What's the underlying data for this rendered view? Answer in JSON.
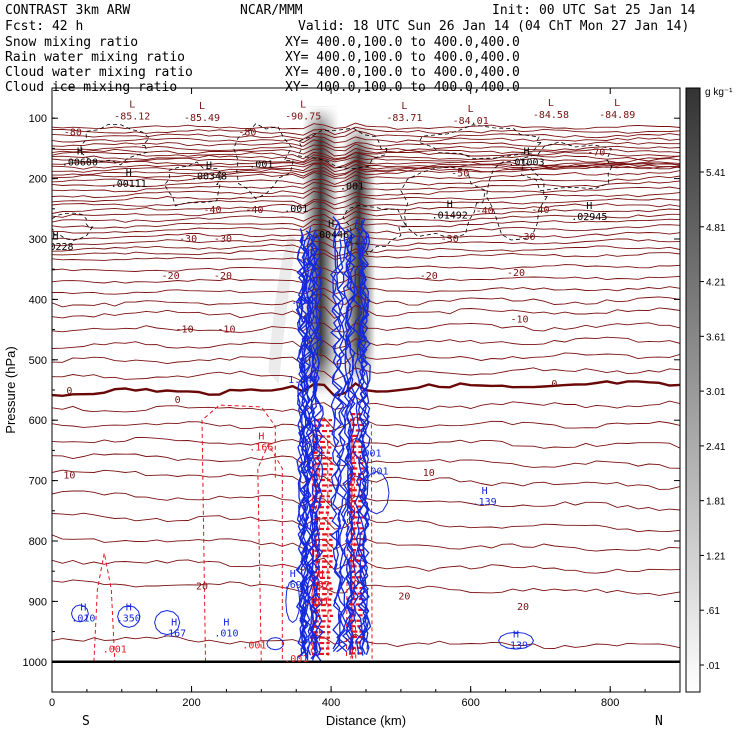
{
  "header": {
    "model": "CONTRAST  3km ARW",
    "center": "NCAR/MMM",
    "init": "Init: 00 UTC Sat 25 Jan 14",
    "fcst": "Fcst:   42 h",
    "valid": "Valid: 18 UTC Sun 26 Jan 14 (04 ChT Mon 27 Jan 14)"
  },
  "colors": {
    "snow": "#000000",
    "rain": "#e8141e",
    "cloud_water": "#1428dc",
    "cloud_ice": "#000000",
    "temperature": "#7a1010",
    "zero_line": "#6a0808"
  },
  "legend": [
    {
      "name": "Snow mixing ratio",
      "xy": "XY= 400.0,100.0 to 400.0,400.0",
      "color": "#000000"
    },
    {
      "name": "Rain water mixing ratio",
      "xy": "XY= 400.0,100.0 to 400.0,400.0",
      "color": "#e8141e"
    },
    {
      "name": "Cloud water mixing ratio",
      "xy": "XY= 400.0,100.0 to 400.0,400.0",
      "color": "#1428dc"
    },
    {
      "name": "Cloud ice mixing ratio",
      "xy": "XY= 400.0,100.0 to 400.0,400.0",
      "color": "#000000"
    }
  ],
  "chart_data": {
    "type": "heatmap",
    "xlabel": "Distance (km)",
    "ylabel": "Pressure (hPa)",
    "xlim": [
      0,
      900
    ],
    "ylim": [
      1050,
      50
    ],
    "x_ticks": [
      0,
      200,
      400,
      600,
      800
    ],
    "y_ticks": [
      100,
      200,
      300,
      400,
      500,
      600,
      700,
      800,
      900,
      1000
    ],
    "x_end_labels": {
      "left": "S",
      "right": "N"
    },
    "colorbar": {
      "units": "g kg⁻¹",
      "ticks": [
        ".01",
        ".61",
        "1.21",
        "1.81",
        "2.41",
        "3.01",
        "3.61",
        "4.21",
        "4.81",
        "5.41"
      ]
    },
    "temperature_contours": [
      {
        "value": -80,
        "p_left": 115,
        "p_right": 115
      },
      {
        "value": -70,
        "p_left": 150,
        "p_right": 150
      },
      {
        "value": -60,
        "p_left": 175,
        "p_right": 175
      },
      {
        "value": -50,
        "p_left": 205,
        "p_right": 180
      },
      {
        "value": -40,
        "p_left": 245,
        "p_right": 225
      },
      {
        "value": -30,
        "p_left": 290,
        "p_right": 268
      },
      {
        "value": -20,
        "p_left": 335,
        "p_right": 325
      },
      {
        "value": -10,
        "p_left": 425,
        "p_right": 420
      },
      {
        "value": 0,
        "p_left": 555,
        "p_right": 540
      },
      {
        "value": 10,
        "p_left": 685,
        "p_right": 710
      },
      {
        "value": 20,
        "p_left": 870,
        "p_right": 885
      }
    ],
    "temperature_labels": [
      {
        "text": "-80",
        "x": 30,
        "p": 122
      },
      {
        "text": "-80",
        "x": 280,
        "p": 122
      },
      {
        "text": "-70",
        "x": 780,
        "p": 155
      },
      {
        "text": "-50",
        "x": 585,
        "p": 190
      },
      {
        "text": "-40",
        "x": 230,
        "p": 250
      },
      {
        "text": "-40",
        "x": 290,
        "p": 250
      },
      {
        "text": "-40",
        "x": 620,
        "p": 252
      },
      {
        "text": "-40",
        "x": 700,
        "p": 250
      },
      {
        "text": "-30",
        "x": 195,
        "p": 298
      },
      {
        "text": "-30",
        "x": 245,
        "p": 298
      },
      {
        "text": "-30",
        "x": 570,
        "p": 298
      },
      {
        "text": "-30",
        "x": 680,
        "p": 295
      },
      {
        "text": "-20",
        "x": 170,
        "p": 360
      },
      {
        "text": "-20",
        "x": 245,
        "p": 360
      },
      {
        "text": "-20",
        "x": 540,
        "p": 360
      },
      {
        "text": "-20",
        "x": 665,
        "p": 355
      },
      {
        "text": "-10",
        "x": 190,
        "p": 448
      },
      {
        "text": "-10",
        "x": 250,
        "p": 448
      },
      {
        "text": "-10",
        "x": 670,
        "p": 432
      },
      {
        "text": "0",
        "x": 25,
        "p": 550
      },
      {
        "text": "0",
        "x": 180,
        "p": 565
      },
      {
        "text": "0",
        "x": 720,
        "p": 538
      },
      {
        "text": "10",
        "x": 25,
        "p": 690
      },
      {
        "text": "10",
        "x": 540,
        "p": 686
      },
      {
        "text": "20",
        "x": 215,
        "p": 874
      },
      {
        "text": "20",
        "x": 505,
        "p": 890
      },
      {
        "text": "20",
        "x": 675,
        "p": 908
      }
    ],
    "lows": [
      {
        "x": 115,
        "p": 82,
        "value": "-85.12"
      },
      {
        "x": 215,
        "p": 85,
        "value": "-85.49"
      },
      {
        "x": 360,
        "p": 82,
        "value": "-90.75"
      },
      {
        "x": 505,
        "p": 85,
        "value": "-83.71"
      },
      {
        "x": 600,
        "p": 90,
        "value": "-84.01"
      },
      {
        "x": 715,
        "p": 80,
        "value": "-84.58"
      },
      {
        "x": 810,
        "p": 80,
        "value": "-84.89"
      }
    ],
    "highs": [
      {
        "x": 40,
        "p": 160,
        "value": ".00600",
        "color": "#000000"
      },
      {
        "x": 110,
        "p": 196,
        "value": ".00111",
        "color": "#000000"
      },
      {
        "x": 225,
        "p": 183,
        "value": ".00348",
        "color": "#000000"
      },
      {
        "x": 400,
        "p": 280,
        "value": ".00446",
        "color": "#000000"
      },
      {
        "x": 570,
        "p": 248,
        "value": ".01492",
        "color": "#000000"
      },
      {
        "x": 680,
        "p": 160,
        "value": ".01003",
        "color": "#000000"
      },
      {
        "x": 770,
        "p": 250,
        "value": ".02945",
        "color": "#000000"
      },
      {
        "x": 5,
        "p": 300,
        "value": ".00228",
        "color": "#000000"
      },
      {
        "x": 300,
        "p": 632,
        "value": ".166",
        "color": "#e8141e"
      },
      {
        "x": 620,
        "p": 722,
        "value": ".139",
        "color": "#1428dc"
      },
      {
        "x": 45,
        "p": 915,
        "value": ".010",
        "color": "#1428dc"
      },
      {
        "x": 110,
        "p": 915,
        "value": ".350",
        "color": "#1428dc"
      },
      {
        "x": 175,
        "p": 940,
        "value": ".167",
        "color": "#1428dc"
      },
      {
        "x": 250,
        "p": 940,
        "value": ".010",
        "color": "#1428dc"
      },
      {
        "x": 665,
        "p": 960,
        "value": ".139",
        "color": "#1428dc"
      },
      {
        "x": 360,
        "p": 520,
        "value": "1.042",
        "color": "#1428dc"
      },
      {
        "x": 345,
        "p": 860,
        "value": ".69",
        "color": "#1428dc"
      },
      {
        "x": 385,
        "p": 860,
        "value": ".67",
        "color": "#e8141e"
      }
    ],
    "small_labels": [
      {
        "text": ".001",
        "x": 300,
        "p": 182,
        "color": "#000000"
      },
      {
        "text": ".001",
        "x": 430,
        "p": 218,
        "color": "#000000"
      },
      {
        "text": ".001",
        "x": 350,
        "p": 255,
        "color": "#000000"
      },
      {
        "text": ".001",
        "x": 90,
        "p": 985,
        "color": "#e8141e"
      },
      {
        "text": ".001",
        "x": 290,
        "p": 978,
        "color": "#e8141e"
      },
      {
        "text": ".001",
        "x": 350,
        "p": 1000,
        "color": "#e8141e"
      },
      {
        "text": ".001",
        "x": 380,
        "p": 905,
        "color": "#e8141e"
      },
      {
        "text": ".001",
        "x": 455,
        "p": 660,
        "color": "#1428dc"
      },
      {
        "text": ".001",
        "x": 465,
        "p": 690,
        "color": "#1428dc"
      },
      {
        "text": ".001",
        "x": 360,
        "p": 408,
        "color": "#1428dc"
      },
      {
        "text": ".401",
        "x": 365,
        "p": 440,
        "color": "#1428dc"
      }
    ],
    "shading_towers": [
      {
        "x_center": 385,
        "p_top": 80,
        "p_bottom": 560,
        "max": 5.4
      },
      {
        "x_center": 440,
        "p_top": 110,
        "p_bottom": 540,
        "max": 5.0
      }
    ],
    "rain_cores": [
      {
        "x_min": 375,
        "x_max": 400,
        "p_top": 600,
        "p_bottom": 990
      },
      {
        "x_min": 428,
        "x_max": 448,
        "p_top": 590,
        "p_bottom": 995
      }
    ],
    "cloud_water_cores": [
      {
        "x_min": 355,
        "x_max": 385,
        "p_top": 280,
        "p_bottom": 1000
      },
      {
        "x_min": 405,
        "x_max": 450,
        "p_top": 260,
        "p_bottom": 990
      }
    ]
  }
}
